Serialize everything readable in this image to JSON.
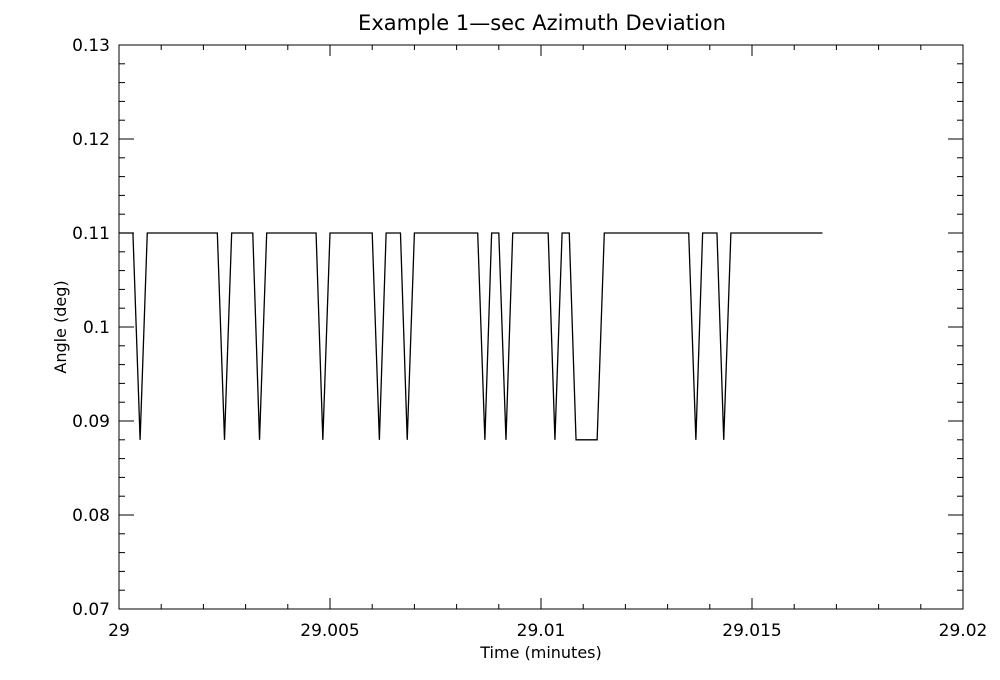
{
  "chart_data": {
    "type": "line",
    "title": "Example 1—sec Azimuth Deviation",
    "xlabel": "Time (minutes)",
    "ylabel": "Angle (deg)",
    "xlim": [
      29,
      29.02
    ],
    "ylim": [
      0.07,
      0.13
    ],
    "x_ticks": [
      29,
      29.005,
      29.01,
      29.015,
      29.02
    ],
    "x_tick_labels": [
      "29",
      "29.005",
      "29.01",
      "29.015",
      "29.02"
    ],
    "y_ticks": [
      0.07,
      0.08,
      0.09,
      0.1,
      0.11,
      0.12,
      0.13
    ],
    "y_tick_labels": [
      "0.07",
      "0.08",
      "0.09",
      "0.1",
      "0.11",
      "0.12",
      "0.13"
    ],
    "x_minor_step": 0.001,
    "y_minor_step": 0.002,
    "grid": false,
    "line_color": "#000000",
    "series": [
      {
        "x": [
          29.0,
          29.00033,
          29.0005,
          29.00067,
          29.00233,
          29.0025,
          29.00267,
          29.00317,
          29.00333,
          29.0035,
          29.00467,
          29.00483,
          29.005,
          29.006,
          29.00617,
          29.00633,
          29.00667,
          29.00683,
          29.007,
          29.0085,
          29.00867,
          29.00883,
          29.009,
          29.00917,
          29.00933,
          29.01017,
          29.01033,
          29.0105,
          29.01067,
          29.01083,
          29.011,
          29.01133,
          29.0115,
          29.0135,
          29.01367,
          29.01383,
          29.01417,
          29.01433,
          29.0145,
          29.01667
        ],
        "y": [
          0.11,
          0.11,
          0.088,
          0.11,
          0.11,
          0.088,
          0.11,
          0.11,
          0.088,
          0.11,
          0.11,
          0.088,
          0.11,
          0.11,
          0.088,
          0.11,
          0.11,
          0.088,
          0.11,
          0.11,
          0.088,
          0.11,
          0.11,
          0.088,
          0.11,
          0.11,
          0.088,
          0.11,
          0.11,
          0.088,
          0.088,
          0.088,
          0.11,
          0.11,
          0.088,
          0.11,
          0.11,
          0.088,
          0.11,
          0.11
        ]
      }
    ]
  }
}
